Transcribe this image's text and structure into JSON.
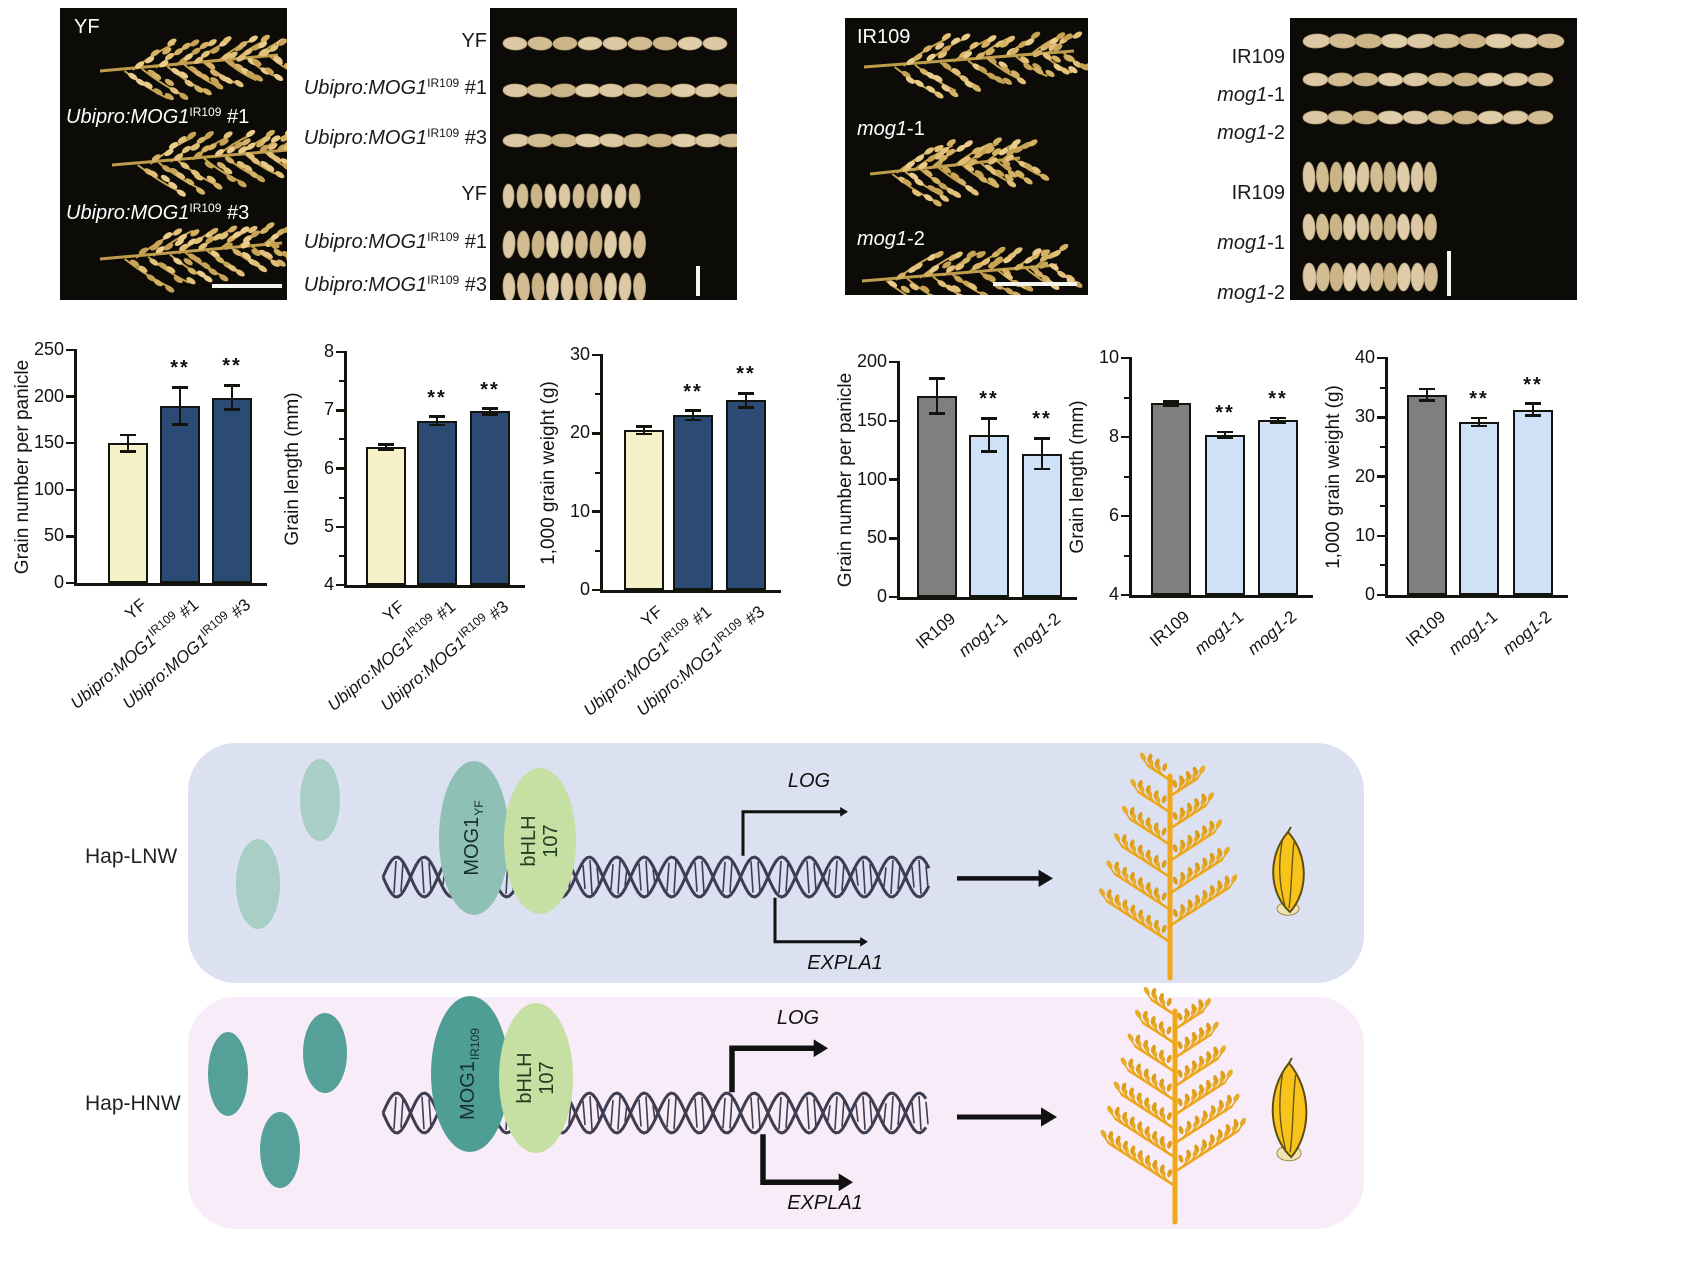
{
  "colors": {
    "bar_cream": "#f6f1c6",
    "bar_dark_blue": "#2c4b74",
    "bar_gray": "#7f7f7f",
    "bar_light_blue": "#cfe1f7",
    "axis_black": "#14140f",
    "lnw_panel_bg": "#dbe1f1",
    "hnw_panel_bg": "#f8ecf8",
    "free_protein_lnw": "#a9cec6",
    "free_protein_hnw": "#55a19a",
    "mog1_lnw": "#8fc0b5",
    "mog1_hnw": "#4f9e96",
    "bhlh_green": "#c5e0a2",
    "dna": "#3f3d52",
    "panicle_gold": "#f0a81a",
    "grain_gold": "#f8c41c",
    "photo_grain_tan": "#d8c49e",
    "photo_panel_bg": "#0c0b08"
  },
  "photo_panels": {
    "panel_a": {
      "description": "panicle photos YF vs overexpression lines",
      "labels_rich": [
        [
          {
            "t": "YF"
          }
        ],
        [
          {
            "t": "Ubipro:MOG1",
            "i": true
          },
          {
            "t": "IR109",
            "sup": true
          },
          {
            "t": " #1"
          }
        ],
        [
          {
            "t": "Ubipro:MOG1",
            "i": true
          },
          {
            "t": "IR109",
            "sup": true
          },
          {
            "t": " #3"
          }
        ]
      ]
    },
    "panel_b": {
      "description": "grain photos YF vs overexpression lines",
      "labels_rich": [
        [
          {
            "t": "YF"
          }
        ],
        [
          {
            "t": "Ubipro:MOG1",
            "i": true
          },
          {
            "t": "IR109",
            "sup": true
          },
          {
            "t": " #1"
          }
        ],
        [
          {
            "t": "Ubipro:MOG1",
            "i": true
          },
          {
            "t": "IR109",
            "sup": true
          },
          {
            "t": " #3"
          }
        ],
        [
          {
            "t": "YF"
          }
        ],
        [
          {
            "t": "Ubipro:MOG1",
            "i": true
          },
          {
            "t": "IR109",
            "sup": true
          },
          {
            "t": " #1"
          }
        ],
        [
          {
            "t": "Ubipro:MOG1",
            "i": true
          },
          {
            "t": "IR109",
            "sup": true
          },
          {
            "t": " #3"
          }
        ]
      ]
    },
    "panel_c": {
      "description": "panicle photos IR109 vs mog1 mutants",
      "labels_rich": [
        [
          {
            "t": "IR109"
          }
        ],
        [
          {
            "t": "mog1",
            "i": true
          },
          {
            "t": "-1"
          }
        ],
        [
          {
            "t": "mog1",
            "i": true
          },
          {
            "t": "-2"
          }
        ]
      ]
    },
    "panel_d": {
      "description": "grain photos IR109 vs mog1 mutants",
      "labels_rich": [
        [
          {
            "t": "IR109"
          }
        ],
        [
          {
            "t": "mog1",
            "i": true
          },
          {
            "t": "-1"
          }
        ],
        [
          {
            "t": "mog1",
            "i": true
          },
          {
            "t": "-2"
          }
        ],
        [
          {
            "t": "IR109"
          }
        ],
        [
          {
            "t": "mog1",
            "i": true
          },
          {
            "t": "-1"
          }
        ],
        [
          {
            "t": "mog1",
            "i": true
          },
          {
            "t": "-2"
          }
        ]
      ]
    }
  },
  "chart_data": [
    {
      "type": "bar",
      "ylabel": "Grain number per panicle",
      "ylim": [
        0,
        250
      ],
      "yticks": [
        0,
        50,
        100,
        150,
        200,
        250
      ],
      "yticks_minor": [],
      "categories": [
        "YF",
        "Ubipro:MOG1IR109 #1",
        "Ubipro:MOG1IR109 #3"
      ],
      "categories_rich": [
        [
          {
            "t": "YF"
          }
        ],
        [
          {
            "t": "Ubipro:MOG1",
            "i": true
          },
          {
            "t": "IR109",
            "sup": true
          },
          {
            "t": " #1"
          }
        ],
        [
          {
            "t": "Ubipro:MOG1",
            "i": true
          },
          {
            "t": "IR109",
            "sup": true
          },
          {
            "t": " #3"
          }
        ]
      ],
      "values": [
        150,
        190,
        199
      ],
      "errors": [
        9,
        20,
        13
      ],
      "sig": [
        "",
        "**",
        "**"
      ],
      "bar_colors": [
        "#f6f1c6",
        "#2c4b74",
        "#2c4b74"
      ]
    },
    {
      "type": "bar",
      "ylabel": "Grain length (mm)",
      "ylim": [
        4,
        8
      ],
      "yticks": [
        4,
        5,
        6,
        7,
        8
      ],
      "yticks_minor": [
        4.5,
        5.5,
        6.5,
        7.5
      ],
      "categories": [
        "YF",
        "Ubipro:MOG1IR109 #1",
        "Ubipro:MOG1IR109 #3"
      ],
      "categories_rich": [
        [
          {
            "t": "YF"
          }
        ],
        [
          {
            "t": "Ubipro:MOG1",
            "i": true
          },
          {
            "t": "IR109",
            "sup": true
          },
          {
            "t": " #1"
          }
        ],
        [
          {
            "t": "Ubipro:MOG1",
            "i": true
          },
          {
            "t": "IR109",
            "sup": true
          },
          {
            "t": " #3"
          }
        ]
      ],
      "values": [
        6.37,
        6.82,
        6.98
      ],
      "errors": [
        0.04,
        0.07,
        0.05
      ],
      "sig": [
        "",
        "**",
        "**"
      ],
      "bar_colors": [
        "#f6f1c6",
        "#2c4b74",
        "#2c4b74"
      ]
    },
    {
      "type": "bar",
      "ylabel": "1,000 grain weight (g)",
      "ylim": [
        0,
        30
      ],
      "yticks": [
        0,
        10,
        20,
        30
      ],
      "yticks_minor": [
        5,
        15,
        25
      ],
      "categories": [
        "YF",
        "Ubipro:MOG1IR109 #1",
        "Ubipro:MOG1IR109 #3"
      ],
      "categories_rich": [
        [
          {
            "t": "YF"
          }
        ],
        [
          {
            "t": "Ubipro:MOG1",
            "i": true
          },
          {
            "t": "IR109",
            "sup": true
          },
          {
            "t": " #1"
          }
        ],
        [
          {
            "t": "Ubipro:MOG1",
            "i": true
          },
          {
            "t": "IR109",
            "sup": true
          },
          {
            "t": " #3"
          }
        ]
      ],
      "values": [
        20.4,
        22.3,
        24.2
      ],
      "errors": [
        0.5,
        0.6,
        0.9
      ],
      "sig": [
        "",
        "**",
        "**"
      ],
      "bar_colors": [
        "#f6f1c6",
        "#2c4b74",
        "#2c4b74"
      ]
    },
    {
      "type": "bar",
      "ylabel": "Grain number per panicle",
      "ylim": [
        0,
        200
      ],
      "yticks": [
        0,
        50,
        100,
        150,
        200
      ],
      "yticks_minor": [],
      "categories": [
        "IR109",
        "mog1-1",
        "mog1-2"
      ],
      "categories_rich": [
        [
          {
            "t": "IR109"
          }
        ],
        [
          {
            "t": "mog1",
            "i": true
          },
          {
            "t": "-1"
          }
        ],
        [
          {
            "t": "mog1",
            "i": true
          },
          {
            "t": "-2"
          }
        ]
      ],
      "values": [
        171,
        138,
        122
      ],
      "errors": [
        15,
        14,
        13
      ],
      "sig": [
        "",
        "**",
        "**"
      ],
      "bar_colors": [
        "#7f7f7f",
        "#cfe1f7",
        "#cfe1f7"
      ]
    },
    {
      "type": "bar",
      "ylabel": "Grain length (mm)",
      "ylim": [
        4,
        10
      ],
      "yticks": [
        4,
        6,
        8,
        10
      ],
      "yticks_minor": [
        5,
        7,
        9
      ],
      "categories": [
        "IR109",
        "mog1-1",
        "mog1-2"
      ],
      "categories_rich": [
        [
          {
            "t": "IR109"
          }
        ],
        [
          {
            "t": "mog1",
            "i": true
          },
          {
            "t": "-1"
          }
        ],
        [
          {
            "t": "mog1",
            "i": true
          },
          {
            "t": "-2"
          }
        ]
      ],
      "values": [
        8.85,
        8.05,
        8.42
      ],
      "errors": [
        0.05,
        0.08,
        0.06
      ],
      "sig": [
        "",
        "**",
        "**"
      ],
      "bar_colors": [
        "#7f7f7f",
        "#cfe1f7",
        "#cfe1f7"
      ]
    },
    {
      "type": "bar",
      "ylabel": "1,000 grain weight (g)",
      "ylim": [
        0,
        40
      ],
      "yticks": [
        0,
        10,
        20,
        30,
        40
      ],
      "yticks_minor": [
        5,
        15,
        25,
        35
      ],
      "categories": [
        "IR109",
        "mog1-1",
        "mog1-2"
      ],
      "categories_rich": [
        [
          {
            "t": "IR109"
          }
        ],
        [
          {
            "t": "mog1",
            "i": true
          },
          {
            "t": "-1"
          }
        ],
        [
          {
            "t": "mog1",
            "i": true
          },
          {
            "t": "-2"
          }
        ]
      ],
      "values": [
        33.8,
        29.2,
        31.3
      ],
      "errors": [
        1.0,
        0.7,
        1.0
      ],
      "sig": [
        "",
        "**",
        "**"
      ],
      "bar_colors": [
        "#7f7f7f",
        "#cfe1f7",
        "#cfe1f7"
      ]
    }
  ],
  "model": {
    "rows": [
      {
        "label": "Hap-LNW",
        "protein_complex": [
          {
            "name": "MOG1",
            "sub": "YF"
          },
          {
            "name": "bHLH",
            "line2": "107"
          }
        ],
        "genes": [
          "LOG",
          "EXPLA1"
        ],
        "expression": "low"
      },
      {
        "label": "Hap-HNW",
        "protein_complex": [
          {
            "name": "MOG1",
            "sub": "IR109"
          },
          {
            "name": "bHLH",
            "line2": "107"
          }
        ],
        "genes": [
          "LOG",
          "EXPLA1"
        ],
        "expression": "high"
      }
    ]
  }
}
